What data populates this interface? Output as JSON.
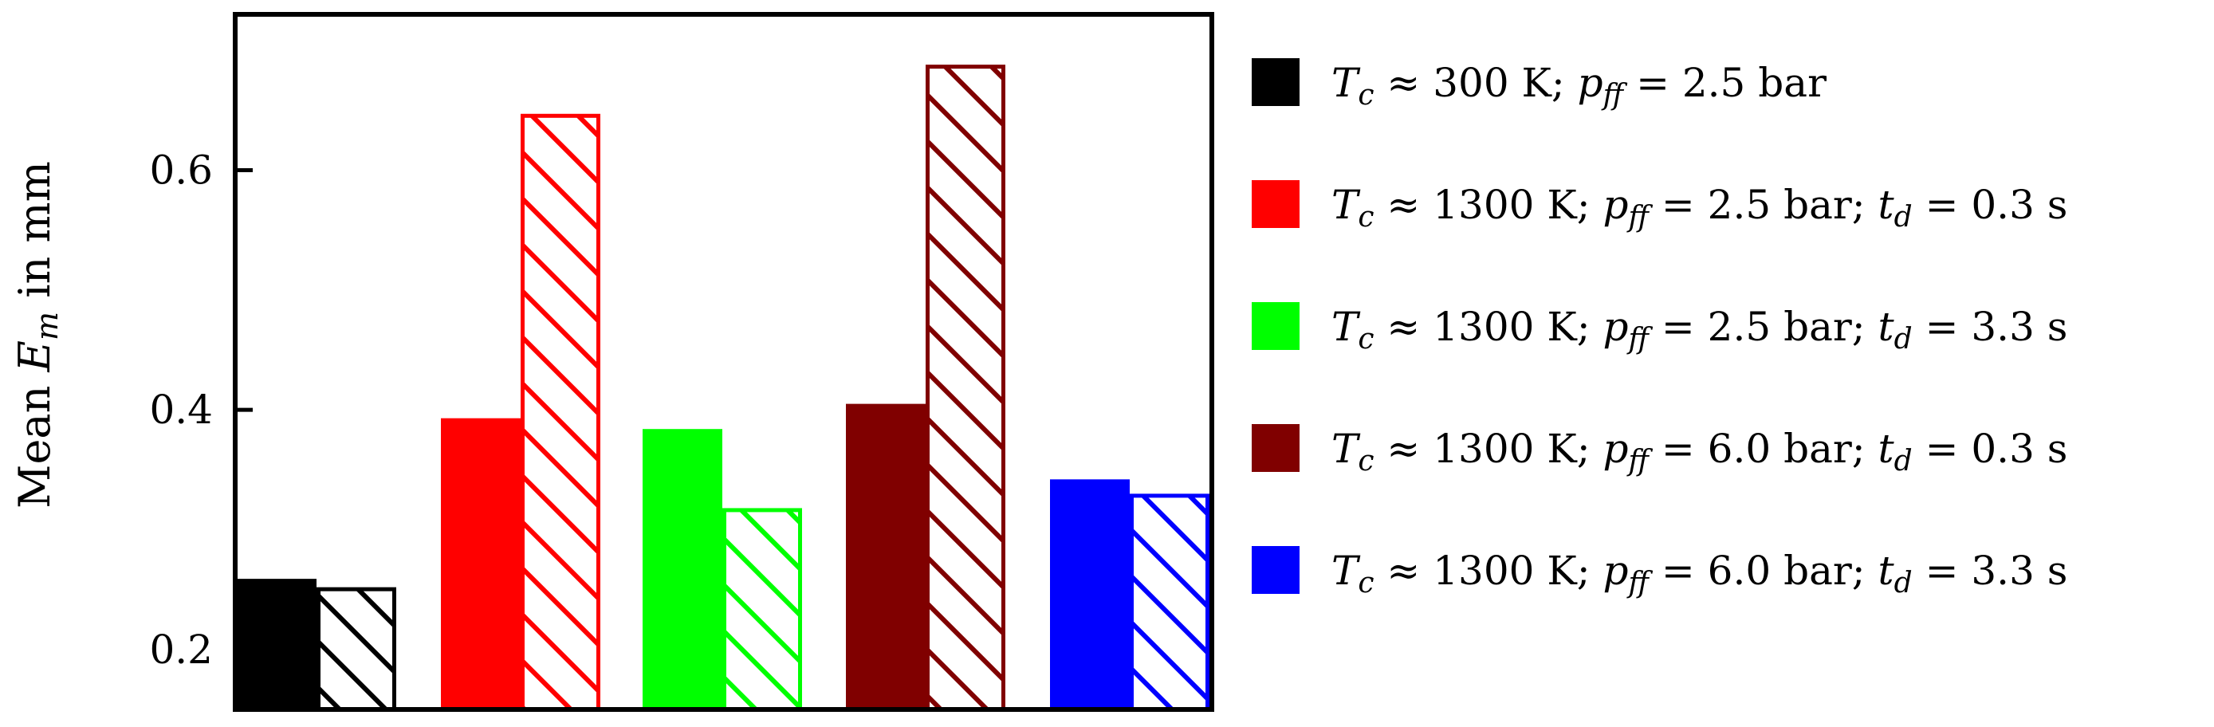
{
  "chart_data": {
    "type": "bar",
    "title": "",
    "xlabel": "",
    "ylabel": "Mean E_m in mm",
    "ylabel_parts": {
      "pre": "Mean ",
      "sym": "E",
      "sub": "m",
      "post": " in mm"
    },
    "ylim": [
      0.15,
      0.73
    ],
    "yticks": [
      0.2,
      0.4,
      0.6
    ],
    "ytick_labels": [
      "0.2",
      "0.4",
      "0.6"
    ],
    "grid": false,
    "legend_position": "right",
    "groups": [
      {
        "name": "Tc ≈ 300 K; pff = 2.5 bar",
        "color": "#000000",
        "values": [
          0.259,
          0.252
        ]
      },
      {
        "name": "Tc ≈ 1300 K; pff = 2.5 bar; td = 0.3 s",
        "color": "#ff0000",
        "values": [
          0.393,
          0.647
        ]
      },
      {
        "name": "Tc ≈ 1300 K; pff = 2.5 bar; td = 3.3 s",
        "color": "#00ff00",
        "values": [
          0.384,
          0.318
        ]
      },
      {
        "name": "Tc ≈ 1300 K; pff = 6.0 bar; td = 0.3 s",
        "color": "#800000",
        "values": [
          0.405,
          0.688
        ]
      },
      {
        "name": "Tc ≈ 1300 K; pff = 6.0 bar; td = 3.3 s",
        "color": "#0000ff",
        "values": [
          0.342,
          0.33
        ]
      }
    ],
    "bar_styles": [
      "solid",
      "hatched"
    ],
    "legend": [
      {
        "color": "#000000",
        "T": "300",
        "p": "2.5",
        "t": ""
      },
      {
        "color": "#ff0000",
        "T": "1300",
        "p": "2.5",
        "t": "0.3"
      },
      {
        "color": "#00ff00",
        "T": "1300",
        "p": "2.5",
        "t": "3.3"
      },
      {
        "color": "#800000",
        "T": "1300",
        "p": "6.0",
        "t": "0.3"
      },
      {
        "color": "#0000ff",
        "T": "1300",
        "p": "6.0",
        "t": "3.3"
      }
    ]
  }
}
